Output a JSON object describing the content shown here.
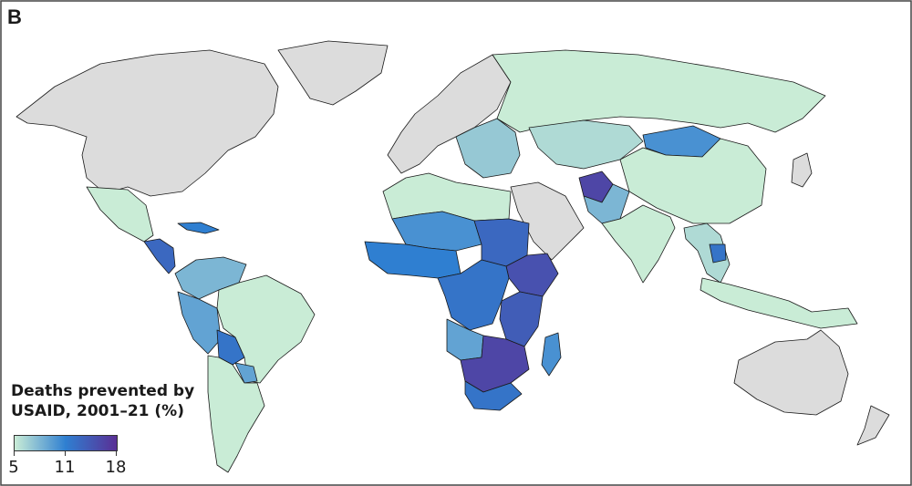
{
  "panel_label": "B",
  "legend": {
    "title_line1": "Deaths prevented by",
    "title_line2": "USAID, 2001–21 (%)",
    "ticks": [
      "5",
      "11",
      "18"
    ],
    "min": 5,
    "mid": 11,
    "max": 18,
    "colors": {
      "low": "#c9ecd6",
      "mid": "#2f7fd1",
      "high": "#5a2f95",
      "nodata": "#dcdcdc",
      "land_low": "#d4f0d8",
      "ocean": "#ffffff"
    }
  },
  "map": {
    "type": "choropleth",
    "regions": [
      {
        "name": "North America",
        "value": null
      },
      {
        "name": "Greenland",
        "value": null
      },
      {
        "name": "Mexico",
        "value": 5
      },
      {
        "name": "Central America",
        "value": 13
      },
      {
        "name": "Caribbean",
        "value": 11
      },
      {
        "name": "Colombia/Venezuela",
        "value": 8
      },
      {
        "name": "Ecuador/Peru",
        "value": 9
      },
      {
        "name": "Brazil",
        "value": 5
      },
      {
        "name": "Bolivia",
        "value": 12
      },
      {
        "name": "Paraguay",
        "value": 9
      },
      {
        "name": "Argentina/Chile",
        "value": 5
      },
      {
        "name": "Western Europe",
        "value": null
      },
      {
        "name": "Eastern Europe",
        "value": 7
      },
      {
        "name": "Russia",
        "value": 5
      },
      {
        "name": "Mongolia",
        "value": 10
      },
      {
        "name": "Central Asia",
        "value": 6
      },
      {
        "name": "China",
        "value": 5
      },
      {
        "name": "Afghanistan",
        "value": 16
      },
      {
        "name": "Pakistan",
        "value": 8
      },
      {
        "name": "India",
        "value": 5
      },
      {
        "name": "Arabian Peninsula",
        "value": null
      },
      {
        "name": "North Africa",
        "value": 5
      },
      {
        "name": "Mali/Niger/Chad",
        "value": 10
      },
      {
        "name": "West Africa",
        "value": 11
      },
      {
        "name": "Sudan",
        "value": 13
      },
      {
        "name": "Ethiopia",
        "value": 15
      },
      {
        "name": "Central Africa",
        "value": 12
      },
      {
        "name": "East Africa",
        "value": 14
      },
      {
        "name": "Angola",
        "value": 9
      },
      {
        "name": "Southern Africa",
        "value": 16
      },
      {
        "name": "South Africa",
        "value": 12
      },
      {
        "name": "Madagascar",
        "value": 10
      },
      {
        "name": "Southeast Asia",
        "value": 6
      },
      {
        "name": "Cambodia",
        "value": 12
      },
      {
        "name": "Indonesia",
        "value": 5
      },
      {
        "name": "Australia",
        "value": null
      },
      {
        "name": "New Zealand",
        "value": null
      },
      {
        "name": "Japan",
        "value": null
      }
    ]
  }
}
